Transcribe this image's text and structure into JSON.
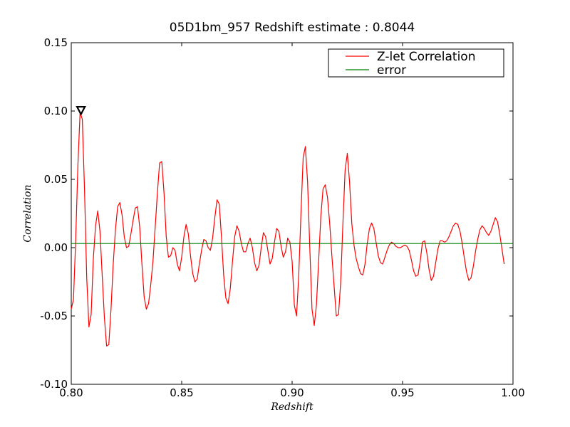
{
  "chart_data": {
    "type": "line",
    "title": "05D1bm_957 Redshift estimate : 0.8044",
    "xlabel": "Redshift",
    "ylabel": "Correlation",
    "xlim": [
      0.8,
      1.0
    ],
    "ylim": [
      -0.1,
      0.15
    ],
    "x_ticks": [
      0.8,
      0.85,
      0.9,
      0.95,
      1.0
    ],
    "x_tick_labels": [
      "0.80",
      "0.85",
      "0.90",
      "0.95",
      "1.00"
    ],
    "y_ticks": [
      -0.1,
      -0.05,
      0.0,
      0.05,
      0.1,
      0.15
    ],
    "y_tick_labels": [
      "-0.10",
      "-0.05",
      "0.00",
      "0.05",
      "0.10",
      "0.15"
    ],
    "grid": false,
    "legend_position": "top-right",
    "series": [
      {
        "name": "Z-let Correlation",
        "color": "#ff0000",
        "points": [
          [
            0.8,
            -0.045
          ],
          [
            0.801,
            -0.038
          ],
          [
            0.802,
            0.005
          ],
          [
            0.803,
            0.06
          ],
          [
            0.804,
            0.099
          ],
          [
            0.805,
            0.094
          ],
          [
            0.806,
            0.043
          ],
          [
            0.807,
            -0.022
          ],
          [
            0.808,
            -0.058
          ],
          [
            0.809,
            -0.049
          ],
          [
            0.81,
            -0.008
          ],
          [
            0.811,
            0.016
          ],
          [
            0.812,
            0.027
          ],
          [
            0.813,
            0.012
          ],
          [
            0.814,
            -0.02
          ],
          [
            0.815,
            -0.051
          ],
          [
            0.816,
            -0.072
          ],
          [
            0.817,
            -0.071
          ],
          [
            0.818,
            -0.045
          ],
          [
            0.819,
            -0.012
          ],
          [
            0.82,
            0.013
          ],
          [
            0.821,
            0.03
          ],
          [
            0.822,
            0.033
          ],
          [
            0.823,
            0.024
          ],
          [
            0.824,
            0.008
          ],
          [
            0.825,
            0.0
          ],
          [
            0.826,
            0.001
          ],
          [
            0.827,
            0.01
          ],
          [
            0.828,
            0.02
          ],
          [
            0.829,
            0.029
          ],
          [
            0.83,
            0.03
          ],
          [
            0.831,
            0.015
          ],
          [
            0.832,
            -0.012
          ],
          [
            0.833,
            -0.036
          ],
          [
            0.834,
            -0.045
          ],
          [
            0.835,
            -0.041
          ],
          [
            0.836,
            -0.027
          ],
          [
            0.837,
            -0.01
          ],
          [
            0.838,
            0.015
          ],
          [
            0.839,
            0.04
          ],
          [
            0.84,
            0.062
          ],
          [
            0.841,
            0.063
          ],
          [
            0.842,
            0.04
          ],
          [
            0.843,
            0.008
          ],
          [
            0.844,
            -0.007
          ],
          [
            0.845,
            -0.006
          ],
          [
            0.846,
            0.0
          ],
          [
            0.847,
            -0.002
          ],
          [
            0.848,
            -0.012
          ],
          [
            0.849,
            -0.017
          ],
          [
            0.85,
            -0.007
          ],
          [
            0.851,
            0.008
          ],
          [
            0.852,
            0.017
          ],
          [
            0.853,
            0.01
          ],
          [
            0.854,
            -0.006
          ],
          [
            0.855,
            -0.019
          ],
          [
            0.856,
            -0.025
          ],
          [
            0.857,
            -0.023
          ],
          [
            0.858,
            -0.012
          ],
          [
            0.859,
            -0.002
          ],
          [
            0.86,
            0.006
          ],
          [
            0.861,
            0.005
          ],
          [
            0.862,
            0.0
          ],
          [
            0.863,
            -0.002
          ],
          [
            0.864,
            0.007
          ],
          [
            0.865,
            0.022
          ],
          [
            0.866,
            0.035
          ],
          [
            0.867,
            0.032
          ],
          [
            0.868,
            0.008
          ],
          [
            0.869,
            -0.02
          ],
          [
            0.87,
            -0.037
          ],
          [
            0.871,
            -0.041
          ],
          [
            0.872,
            -0.03
          ],
          [
            0.873,
            -0.01
          ],
          [
            0.874,
            0.008
          ],
          [
            0.875,
            0.016
          ],
          [
            0.876,
            0.012
          ],
          [
            0.877,
            0.003
          ],
          [
            0.878,
            -0.003
          ],
          [
            0.879,
            -0.003
          ],
          [
            0.88,
            0.003
          ],
          [
            0.881,
            0.007
          ],
          [
            0.882,
            0.0
          ],
          [
            0.883,
            -0.011
          ],
          [
            0.884,
            -0.017
          ],
          [
            0.885,
            -0.013
          ],
          [
            0.886,
            0.0
          ],
          [
            0.887,
            0.011
          ],
          [
            0.888,
            0.008
          ],
          [
            0.889,
            -0.002
          ],
          [
            0.89,
            -0.012
          ],
          [
            0.891,
            -0.008
          ],
          [
            0.892,
            0.004
          ],
          [
            0.893,
            0.014
          ],
          [
            0.894,
            0.012
          ],
          [
            0.895,
            0.001
          ],
          [
            0.896,
            -0.007
          ],
          [
            0.897,
            -0.003
          ],
          [
            0.898,
            0.007
          ],
          [
            0.899,
            0.004
          ],
          [
            0.9,
            -0.01
          ],
          [
            0.901,
            -0.042
          ],
          [
            0.902,
            -0.05
          ],
          [
            0.903,
            -0.02
          ],
          [
            0.904,
            0.025
          ],
          [
            0.905,
            0.066
          ],
          [
            0.906,
            0.074
          ],
          [
            0.907,
            0.048
          ],
          [
            0.908,
            0.0
          ],
          [
            0.909,
            -0.045
          ],
          [
            0.91,
            -0.057
          ],
          [
            0.911,
            -0.042
          ],
          [
            0.912,
            -0.01
          ],
          [
            0.913,
            0.023
          ],
          [
            0.914,
            0.043
          ],
          [
            0.915,
            0.046
          ],
          [
            0.916,
            0.037
          ],
          [
            0.917,
            0.018
          ],
          [
            0.918,
            -0.006
          ],
          [
            0.919,
            -0.028
          ],
          [
            0.92,
            -0.05
          ],
          [
            0.921,
            -0.049
          ],
          [
            0.922,
            -0.025
          ],
          [
            0.923,
            0.018
          ],
          [
            0.924,
            0.057
          ],
          [
            0.925,
            0.069
          ],
          [
            0.926,
            0.048
          ],
          [
            0.927,
            0.018
          ],
          [
            0.928,
            0.002
          ],
          [
            0.929,
            -0.008
          ],
          [
            0.93,
            -0.014
          ],
          [
            0.931,
            -0.019
          ],
          [
            0.932,
            -0.02
          ],
          [
            0.933,
            -0.012
          ],
          [
            0.934,
            0.003
          ],
          [
            0.935,
            0.014
          ],
          [
            0.936,
            0.018
          ],
          [
            0.937,
            0.014
          ],
          [
            0.938,
            0.004
          ],
          [
            0.939,
            -0.006
          ],
          [
            0.94,
            -0.011
          ],
          [
            0.941,
            -0.012
          ],
          [
            0.942,
            -0.007
          ],
          [
            0.943,
            -0.002
          ],
          [
            0.944,
            0.002
          ],
          [
            0.945,
            0.004
          ],
          [
            0.946,
            0.003
          ],
          [
            0.947,
            0.001
          ],
          [
            0.948,
            0.0
          ],
          [
            0.949,
            0.0
          ],
          [
            0.95,
            0.001
          ],
          [
            0.951,
            0.002
          ],
          [
            0.952,
            0.001
          ],
          [
            0.953,
            -0.002
          ],
          [
            0.954,
            -0.009
          ],
          [
            0.955,
            -0.017
          ],
          [
            0.956,
            -0.021
          ],
          [
            0.957,
            -0.02
          ],
          [
            0.958,
            -0.01
          ],
          [
            0.959,
            0.004
          ],
          [
            0.96,
            0.005
          ],
          [
            0.961,
            -0.004
          ],
          [
            0.962,
            -0.016
          ],
          [
            0.963,
            -0.024
          ],
          [
            0.964,
            -0.021
          ],
          [
            0.965,
            -0.011
          ],
          [
            0.966,
            -0.001
          ],
          [
            0.967,
            0.005
          ],
          [
            0.968,
            0.005
          ],
          [
            0.969,
            0.004
          ],
          [
            0.97,
            0.005
          ],
          [
            0.971,
            0.008
          ],
          [
            0.972,
            0.012
          ],
          [
            0.973,
            0.016
          ],
          [
            0.974,
            0.018
          ],
          [
            0.975,
            0.017
          ],
          [
            0.976,
            0.012
          ],
          [
            0.977,
            0.003
          ],
          [
            0.978,
            -0.008
          ],
          [
            0.979,
            -0.018
          ],
          [
            0.98,
            -0.024
          ],
          [
            0.981,
            -0.022
          ],
          [
            0.982,
            -0.014
          ],
          [
            0.983,
            -0.003
          ],
          [
            0.984,
            0.006
          ],
          [
            0.985,
            0.013
          ],
          [
            0.986,
            0.016
          ],
          [
            0.987,
            0.014
          ],
          [
            0.988,
            0.011
          ],
          [
            0.989,
            0.009
          ],
          [
            0.99,
            0.012
          ],
          [
            0.991,
            0.017
          ],
          [
            0.992,
            0.022
          ],
          [
            0.993,
            0.019
          ],
          [
            0.994,
            0.01
          ],
          [
            0.995,
            -0.001
          ],
          [
            0.996,
            -0.012
          ]
        ]
      },
      {
        "name": "error",
        "color": "#008000",
        "points": [
          [
            0.8,
            0.003
          ],
          [
            1.0,
            0.003
          ]
        ]
      }
    ],
    "annotations": [
      {
        "type": "marker",
        "shape": "triangle-down",
        "x": 0.8044,
        "y": 0.1005,
        "color": "#000000"
      }
    ]
  }
}
